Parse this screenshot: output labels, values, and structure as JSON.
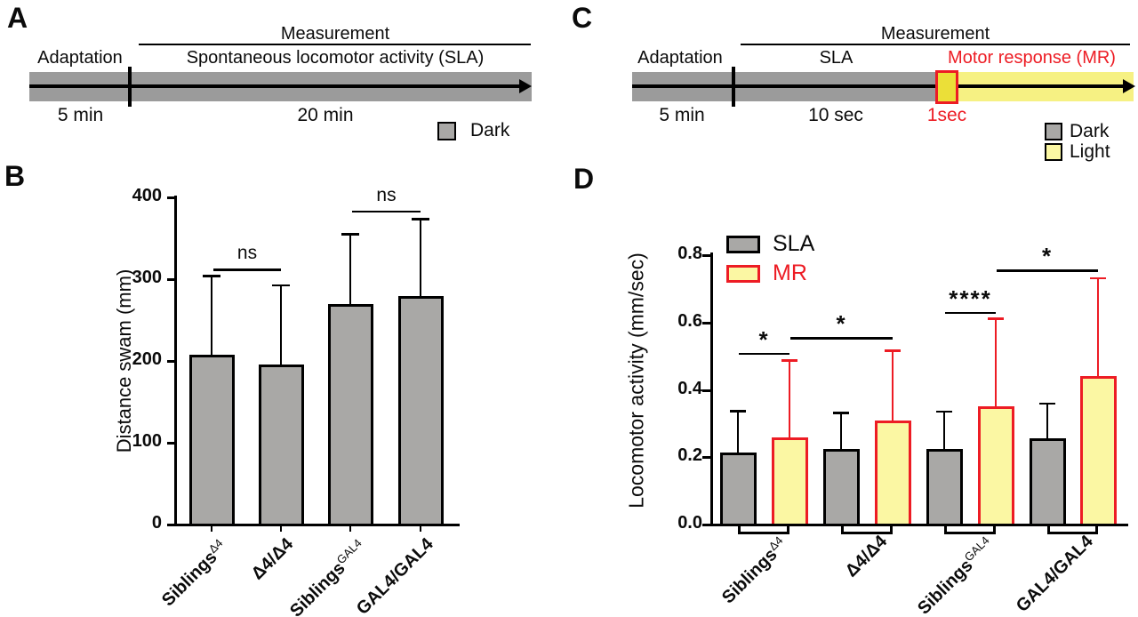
{
  "panels": {
    "A": {
      "label": "A",
      "title": "Measurement",
      "sub": "Spontaneous locomotor activity (SLA)",
      "adaptation": "Adaptation",
      "dur_adaptation": "5 min",
      "dur_measurement": "20 min",
      "legend_dark": "Dark"
    },
    "B": {
      "label": "B"
    },
    "C": {
      "label": "C",
      "title": "Measurement",
      "adaptation": "Adaptation",
      "sla": "SLA",
      "mr": "Motor response (MR)",
      "dur_adaptation": "5 min",
      "dur_sla": "10 sec",
      "dur_flash": "1sec",
      "legend_dark": "Dark",
      "legend_light": "Light"
    },
    "D": {
      "label": "D"
    }
  },
  "colors": {
    "bar_gray": "#a9a8a6",
    "band_gray": "#9b9b9b",
    "band_yellow": "#f6f183",
    "flash_yellow": "#ebdf38",
    "mr_yellow": "#fbf7a3",
    "red": "#ed1c24"
  },
  "chart_data": [
    {
      "type": "bar",
      "ylabel": "Distance swam (mm)",
      "ylim": [
        0,
        400
      ],
      "yticks": [
        "0",
        "100",
        "200",
        "300",
        "400"
      ],
      "categories": [
        {
          "base": "Siblings",
          "sup": "Δ4"
        },
        {
          "base": "Δ4/Δ4",
          "sup": ""
        },
        {
          "base": "Siblings",
          "sup": "GAL4"
        },
        {
          "base": "GAL4/GAL4",
          "sup": ""
        }
      ],
      "values": [
        208,
        196,
        270,
        279
      ],
      "errors_up": [
        97,
        98,
        86,
        96
      ],
      "sig": [
        {
          "a": 0,
          "b": 1,
          "label": "ns",
          "y": 313
        },
        {
          "a": 2,
          "b": 3,
          "label": "ns",
          "y": 384
        }
      ]
    },
    {
      "type": "grouped-bar",
      "ylabel": "Locomotor activity (mm/sec)",
      "ylim": [
        0,
        0.8
      ],
      "yticks": [
        "0.0",
        "0.2",
        "0.4",
        "0.6",
        "0.8"
      ],
      "categories": [
        {
          "base": "Siblings",
          "sup": "Δ4"
        },
        {
          "base": "Δ4/Δ4",
          "sup": ""
        },
        {
          "base": "Siblings",
          "sup": "GAL4"
        },
        {
          "base": "GAL4/GAL4",
          "sup": ""
        }
      ],
      "series": [
        {
          "name": "SLA",
          "fill": "#a9a8a6",
          "border": "#000000",
          "values": [
            0.215,
            0.225,
            0.225,
            0.255
          ],
          "errors_up": [
            0.125,
            0.11,
            0.113,
            0.107
          ]
        },
        {
          "name": "MR",
          "fill": "#fbf7a3",
          "border": "#ed1c24",
          "values": [
            0.26,
            0.31,
            0.35,
            0.44
          ],
          "errors_up": [
            0.23,
            0.21,
            0.265,
            0.295
          ]
        }
      ],
      "sig": [
        {
          "a": 0,
          "b": 1,
          "label": "*",
          "y": 0.51
        },
        {
          "a": 1,
          "b": 3,
          "label": "*",
          "y": 0.556
        },
        {
          "a": 4,
          "b": 5,
          "label": "****",
          "y": 0.632
        },
        {
          "a": 5,
          "b": 7,
          "label": "*",
          "y": 0.757
        }
      ]
    }
  ]
}
